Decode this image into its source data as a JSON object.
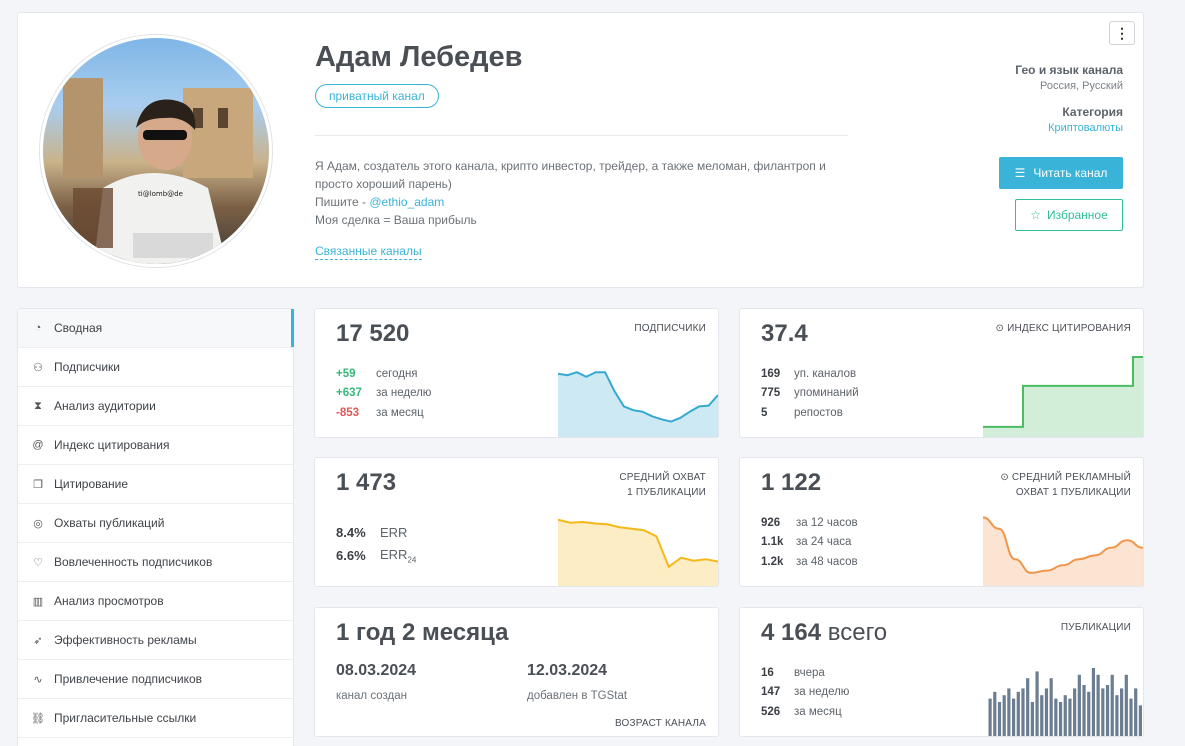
{
  "channel": {
    "name": "Адам Лебедев",
    "badge": "приватный канал",
    "description_line1": "Я Адам, создатель этого канала, крипто инвестор, трейдер, а также меломан, филантроп и",
    "description_line2": "просто хороший парень)",
    "contact_prefix": "Пишите - ",
    "contact_handle": "@ethio_adam",
    "slogan": "Моя сделка = Ваша прибыль",
    "related_link": "Связанные каналы",
    "geo_label": "Гео и язык канала",
    "geo_value": "Россия, Русский",
    "category_label": "Категория",
    "category_value": "Криптовалюты",
    "read_button": "Читать канал",
    "fav_button": "Избранное",
    "menu_icon": "more-vertical-icon"
  },
  "sidebar": {
    "items": [
      {
        "label": "Сводная",
        "icon": "dashboard-icon"
      },
      {
        "label": "Подписчики",
        "icon": "users-icon"
      },
      {
        "label": "Анализ аудитории",
        "icon": "hourglass-icon"
      },
      {
        "label": "Индекс цитирования",
        "icon": "at-icon"
      },
      {
        "label": "Цитирование",
        "icon": "copy-icon"
      },
      {
        "label": "Охваты публикаций",
        "icon": "eye-icon"
      },
      {
        "label": "Вовлеченность подписчиков",
        "icon": "heart-icon"
      },
      {
        "label": "Анализ просмотров",
        "icon": "bar-chart-icon"
      },
      {
        "label": "Эффективность рекламы",
        "icon": "rocket-icon"
      },
      {
        "label": "Привлечение подписчиков",
        "icon": "trend-icon"
      },
      {
        "label": "Пригласительные ссылки",
        "icon": "link-icon"
      }
    ]
  },
  "subscribers": {
    "value": "17 520",
    "caption": "ПОДПИСЧИКИ",
    "rows": [
      {
        "n": "+59",
        "t": "сегодня"
      },
      {
        "n": "+637",
        "t": "за неделю"
      },
      {
        "n": "-853",
        "t": "за месяц"
      }
    ]
  },
  "citation": {
    "value": "37.4",
    "caption": "ИНДЕКС ЦИТИРОВАНИЯ",
    "rows": [
      {
        "n": "169",
        "t": "уп. каналов"
      },
      {
        "n": "775",
        "t": "упоминаний"
      },
      {
        "n": "5",
        "t": "репостов"
      }
    ]
  },
  "reach": {
    "value": "1 473",
    "caption_line1": "СРЕДНИЙ ОХВАТ",
    "caption_line2": "1 ПУБЛИКАЦИИ",
    "err": "8.4%",
    "err_label": "ERR",
    "err24": "6.6%",
    "err24_label": "ERR",
    "err24_sub": "24"
  },
  "ad_reach": {
    "value": "1 122",
    "caption_line1": "СРЕДНИЙ РЕКЛАМНЫЙ",
    "caption_line2": "ОХВАТ 1 ПУБЛИКАЦИИ",
    "rows": [
      {
        "n": "926",
        "t": "за 12 часов"
      },
      {
        "n": "1.1k",
        "t": "за 24 часа"
      },
      {
        "n": "1.2k",
        "t": "за 48 часов"
      }
    ]
  },
  "age": {
    "value": "1 год 2 месяца",
    "created_date": "08.03.2024",
    "created_label": "канал создан",
    "added_date": "12.03.2024",
    "added_label": "добавлен в TGStat",
    "caption": "ВОЗРАСТ КАНАЛА"
  },
  "posts": {
    "value": "4 164",
    "value_suffix": "всего",
    "caption": "ПУБЛИКАЦИИ",
    "rows": [
      {
        "n": "16",
        "t": "вчера"
      },
      {
        "n": "147",
        "t": "за неделю"
      },
      {
        "n": "526",
        "t": "за месяц"
      }
    ]
  },
  "sparklines": {
    "subscribers": [
      0.78,
      0.76,
      0.8,
      0.74,
      0.8,
      0.8,
      0.55,
      0.35,
      0.3,
      0.28,
      0.22,
      0.18,
      0.15,
      0.2,
      0.28,
      0.35,
      0.36,
      0.5
    ],
    "citation": [
      0.08,
      0.08,
      0.08,
      0.08,
      0.62,
      0.62,
      0.62,
      0.62,
      0.62,
      0.62,
      0.62,
      0.62,
      0.62,
      0.62,
      0.62,
      1.0,
      1.0
    ],
    "reach": [
      0.82,
      0.78,
      0.79,
      0.77,
      0.76,
      0.72,
      0.7,
      0.68,
      0.6,
      0.2,
      0.32,
      0.28,
      0.3,
      0.27
    ],
    "ad_reach": [
      0.85,
      0.7,
      0.3,
      0.12,
      0.15,
      0.22,
      0.3,
      0.35,
      0.45,
      0.55,
      0.45
    ],
    "posts": [
      0.55,
      0.65,
      0.5,
      0.6,
      0.7,
      0.55,
      0.65,
      0.7,
      0.85,
      0.5,
      0.95,
      0.6,
      0.7,
      0.85,
      0.55,
      0.5,
      0.6,
      0.55,
      0.7,
      0.9,
      0.75,
      0.65,
      1.0,
      0.9,
      0.7,
      0.75,
      0.9,
      0.6,
      0.7,
      0.9,
      0.55,
      0.7,
      0.45
    ]
  },
  "colors": {
    "accent": "#39b3d7",
    "green": "#34b87a",
    "red": "#e05656",
    "subs_line": "#36a9d2",
    "citation_line": "#4cbc63",
    "reach_line": "#f5b819",
    "ad_line": "#f0964a",
    "posts_bar": "#6a7d91"
  }
}
